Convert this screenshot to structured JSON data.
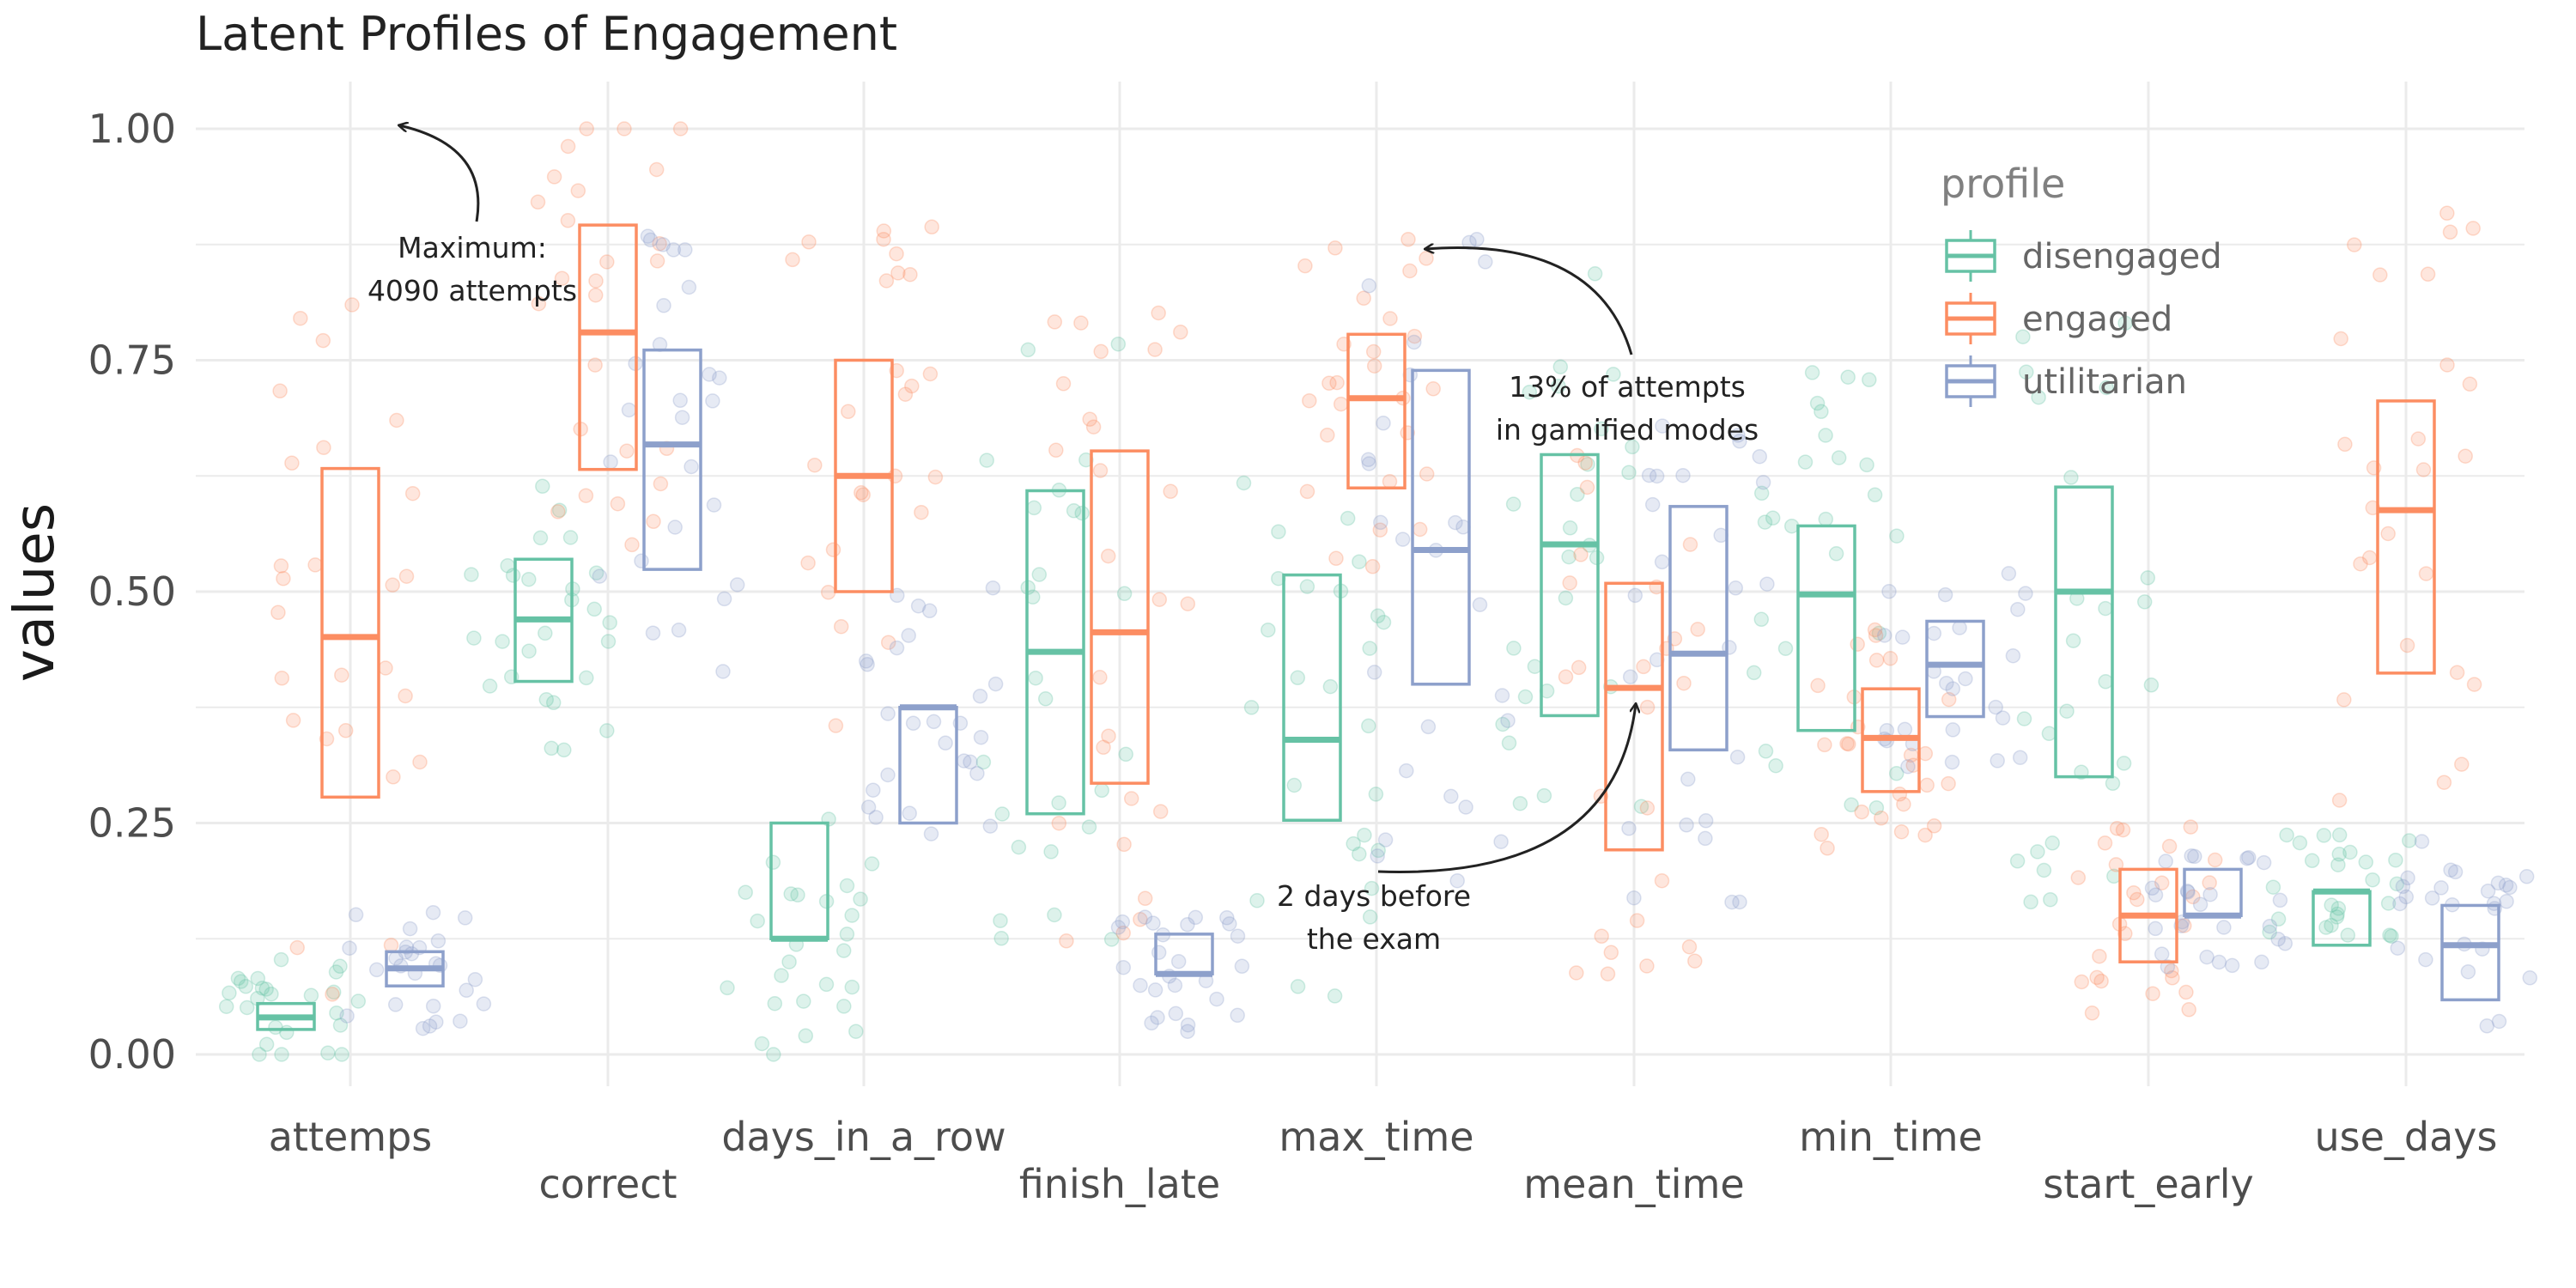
{
  "chart_data": {
    "type": "box",
    "title": "Latent Profiles of Engagement",
    "xlabel": "",
    "ylabel": "values",
    "ylim": [
      -0.05,
      1.05
    ],
    "y_ticks": [
      "0.00",
      "0.25",
      "0.50",
      "0.75",
      "1.00"
    ],
    "categories": [
      "attemps",
      "correct",
      "days_in_a_row",
      "finish_late",
      "max_time",
      "mean_time",
      "min_time",
      "start_early",
      "use_days"
    ],
    "legend": {
      "title": "profile",
      "position": "top-right",
      "items": [
        "disengaged",
        "engaged",
        "utilitarian"
      ]
    },
    "colors": {
      "disengaged": "#66c2a5",
      "engaged": "#fc8d62",
      "utilitarian": "#8da0cb",
      "grid": "#ebebeb"
    },
    "grid": true,
    "series": [
      {
        "name": "disengaged",
        "boxes": [
          {
            "q1": 0.027,
            "median": 0.04,
            "q3": 0.055
          },
          {
            "q1": 0.403,
            "median": 0.47,
            "q3": 0.535
          },
          {
            "q1": 0.125,
            "median": 0.125,
            "q3": 0.25
          },
          {
            "q1": 0.26,
            "median": 0.435,
            "q3": 0.609
          },
          {
            "q1": 0.253,
            "median": 0.34,
            "q3": 0.518
          },
          {
            "q1": 0.366,
            "median": 0.551,
            "q3": 0.648
          },
          {
            "q1": 0.35,
            "median": 0.497,
            "q3": 0.571
          },
          {
            "q1": 0.3,
            "median": 0.5,
            "q3": 0.613
          },
          {
            "q1": 0.118,
            "median": 0.176,
            "q3": 0.176
          }
        ]
      },
      {
        "name": "engaged",
        "boxes": [
          {
            "q1": 0.278,
            "median": 0.451,
            "q3": 0.633
          },
          {
            "q1": 0.632,
            "median": 0.78,
            "q3": 0.896
          },
          {
            "q1": 0.5,
            "median": 0.625,
            "q3": 0.75
          },
          {
            "q1": 0.293,
            "median": 0.456,
            "q3": 0.652
          },
          {
            "q1": 0.612,
            "median": 0.709,
            "q3": 0.778
          },
          {
            "q1": 0.221,
            "median": 0.396,
            "q3": 0.509
          },
          {
            "q1": 0.284,
            "median": 0.342,
            "q3": 0.395
          },
          {
            "q1": 0.1,
            "median": 0.15,
            "q3": 0.2
          },
          {
            "q1": 0.412,
            "median": 0.588,
            "q3": 0.706
          }
        ]
      },
      {
        "name": "utilitarian",
        "boxes": [
          {
            "q1": 0.074,
            "median": 0.093,
            "q3": 0.111
          },
          {
            "q1": 0.524,
            "median": 0.659,
            "q3": 0.761
          },
          {
            "q1": 0.25,
            "median": 0.375,
            "q3": 0.375
          },
          {
            "q1": 0.087,
            "median": 0.087,
            "q3": 0.13
          },
          {
            "q1": 0.4,
            "median": 0.545,
            "q3": 0.739
          },
          {
            "q1": 0.329,
            "median": 0.433,
            "q3": 0.592
          },
          {
            "q1": 0.365,
            "median": 0.421,
            "q3": 0.468
          },
          {
            "q1": 0.15,
            "median": 0.15,
            "q3": 0.2
          },
          {
            "q1": 0.059,
            "median": 0.118,
            "q3": 0.161
          }
        ]
      }
    ],
    "annotations": [
      {
        "lines": [
          "Maximum:",
          "4090 attempts"
        ]
      },
      {
        "lines": [
          "13% of attempts",
          "in gamified modes"
        ]
      },
      {
        "lines": [
          "2 days before",
          "the exam"
        ]
      }
    ]
  }
}
